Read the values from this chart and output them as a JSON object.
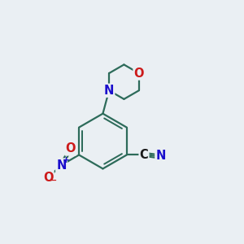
{
  "bg_color": "#eaeff3",
  "bond_color": "#2d6b5a",
  "bond_width": 1.6,
  "N_color": "#1a0dcc",
  "O_color": "#cc1a1a",
  "C_color": "#1a1a1a",
  "font_size": 10.5,
  "fig_size": [
    3.0,
    3.0
  ],
  "dpi": 100,
  "xlim": [
    0,
    10
  ],
  "ylim": [
    0,
    10
  ]
}
